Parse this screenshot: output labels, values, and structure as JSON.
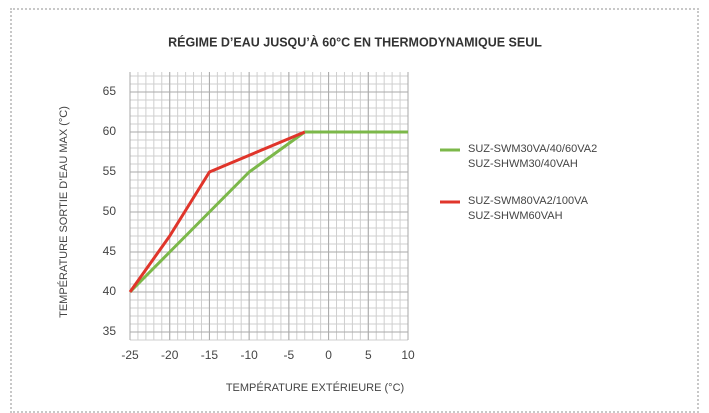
{
  "chart_data": {
    "type": "line",
    "title": "RÉGIME D’EAU JUSQU’À 60°C EN THERMODYNAMIQUE SEUL",
    "xlabel": "TEMPÉRATURE EXTÉRIEURE (°C)",
    "ylabel": "TEMPÉRATURE SORTIE D’EAU MAX (°C)",
    "xlim": [
      -25,
      10
    ],
    "xticks": [
      -25,
      -20,
      -15,
      -10,
      -5,
      0,
      5,
      10
    ],
    "ylim": [
      34,
      67.5
    ],
    "yticks": [
      35,
      40,
      45,
      50,
      55,
      60,
      65
    ],
    "grid": true,
    "minor_grid": true,
    "legend": "right",
    "series": [
      {
        "name": "SUZ-SWM30VA/40/60VA2\nSUZ-SHWM30/40VAH",
        "color": "#7cb84a",
        "x": [
          -25,
          -20,
          -15,
          -10,
          -3,
          10
        ],
        "values": [
          40,
          45,
          50,
          55,
          60,
          60
        ]
      },
      {
        "name": "SUZ-SWM80VA2/100VA\nSUZ-SHWM60VAH",
        "color": "#e0352b",
        "x": [
          -25,
          -20,
          -15,
          -3
        ],
        "values": [
          40,
          47,
          55,
          60
        ]
      }
    ]
  }
}
